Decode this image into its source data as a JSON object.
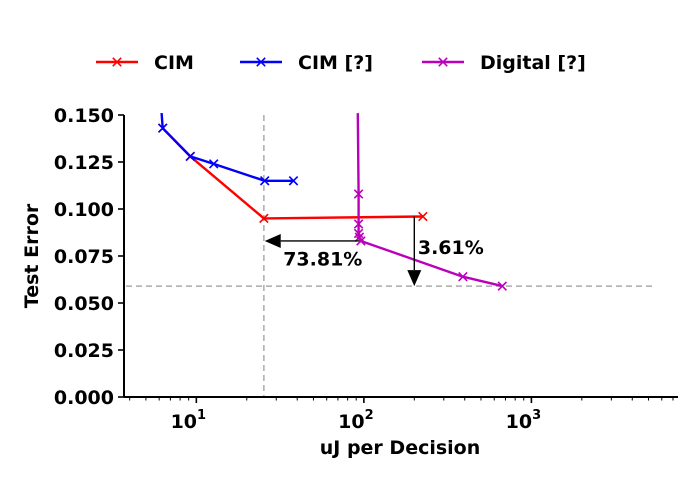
{
  "chart_data": {
    "type": "line",
    "x_scale": "log",
    "xlim": [
      3.7,
      7500
    ],
    "ylim": [
      0.0,
      0.15
    ],
    "xlabel": "uJ per Decision",
    "ylabel": "Test Error",
    "x_ticks": [
      {
        "value": 10,
        "base": "10",
        "exp": "1"
      },
      {
        "value": 100,
        "base": "10",
        "exp": "2"
      },
      {
        "value": 1000,
        "base": "10",
        "exp": "3"
      }
    ],
    "y_ticks": [
      {
        "value": 0.0,
        "label": "0.000"
      },
      {
        "value": 0.025,
        "label": "0.025"
      },
      {
        "value": 0.05,
        "label": "0.050"
      },
      {
        "value": 0.075,
        "label": "0.075"
      },
      {
        "value": 0.1,
        "label": "0.100"
      },
      {
        "value": 0.125,
        "label": "0.125"
      },
      {
        "value": 0.15,
        "label": "0.150"
      }
    ],
    "legend_position": "top",
    "grid": false,
    "series": [
      {
        "name": "CIM",
        "color": "#ff0000",
        "marker": "x",
        "points": [
          [
            6.3,
            0.143
          ],
          [
            9.2,
            0.128
          ],
          [
            25.3,
            0.095
          ],
          [
            225,
            0.096
          ]
        ],
        "markers": [
          [
            6.3,
            0.143
          ],
          [
            9.2,
            0.128
          ],
          [
            25.3,
            0.095
          ],
          [
            225,
            0.096
          ]
        ]
      },
      {
        "name": "CIM [?]",
        "color": "#0000ff",
        "marker": "x",
        "points": [
          [
            6.2,
            0.151
          ],
          [
            6.3,
            0.143
          ],
          [
            9.2,
            0.128
          ],
          [
            12.7,
            0.124
          ],
          [
            25.6,
            0.115
          ],
          [
            38,
            0.115
          ]
        ],
        "markers": [
          [
            6.3,
            0.143
          ],
          [
            9.2,
            0.128
          ],
          [
            12.7,
            0.124
          ],
          [
            25.6,
            0.115
          ],
          [
            38,
            0.115
          ]
        ]
      },
      {
        "name": "Digital [?]",
        "color": "#bb00bb",
        "marker": "x",
        "points": [
          [
            92,
            0.151
          ],
          [
            93,
            0.108
          ],
          [
            93,
            0.092
          ],
          [
            93,
            0.087
          ],
          [
            94,
            0.085
          ],
          [
            96,
            0.083
          ],
          [
            390,
            0.064
          ],
          [
            670,
            0.059
          ]
        ],
        "markers": [
          [
            93,
            0.108
          ],
          [
            93,
            0.092
          ],
          [
            93,
            0.087
          ],
          [
            94,
            0.085
          ],
          [
            96,
            0.083
          ],
          [
            390,
            0.064
          ],
          [
            670,
            0.059
          ]
        ]
      }
    ],
    "reference_lines": [
      {
        "orientation": "vertical",
        "value": 25.3,
        "color": "#aaaaaa",
        "style": "dashed"
      },
      {
        "orientation": "horizontal",
        "value": 0.059,
        "color": "#aaaaaa",
        "style": "dashed"
      }
    ],
    "annotations": [
      {
        "text": "73.81%",
        "arrow_from": [
          94,
          0.083
        ],
        "arrow_to": [
          25.6,
          0.083
        ],
        "text_at": [
          33,
          0.07
        ]
      },
      {
        "text": "3.61%",
        "arrow_from": [
          200,
          0.096
        ],
        "arrow_to": [
          200,
          0.059
        ],
        "text_at": [
          210,
          0.076
        ]
      }
    ]
  }
}
